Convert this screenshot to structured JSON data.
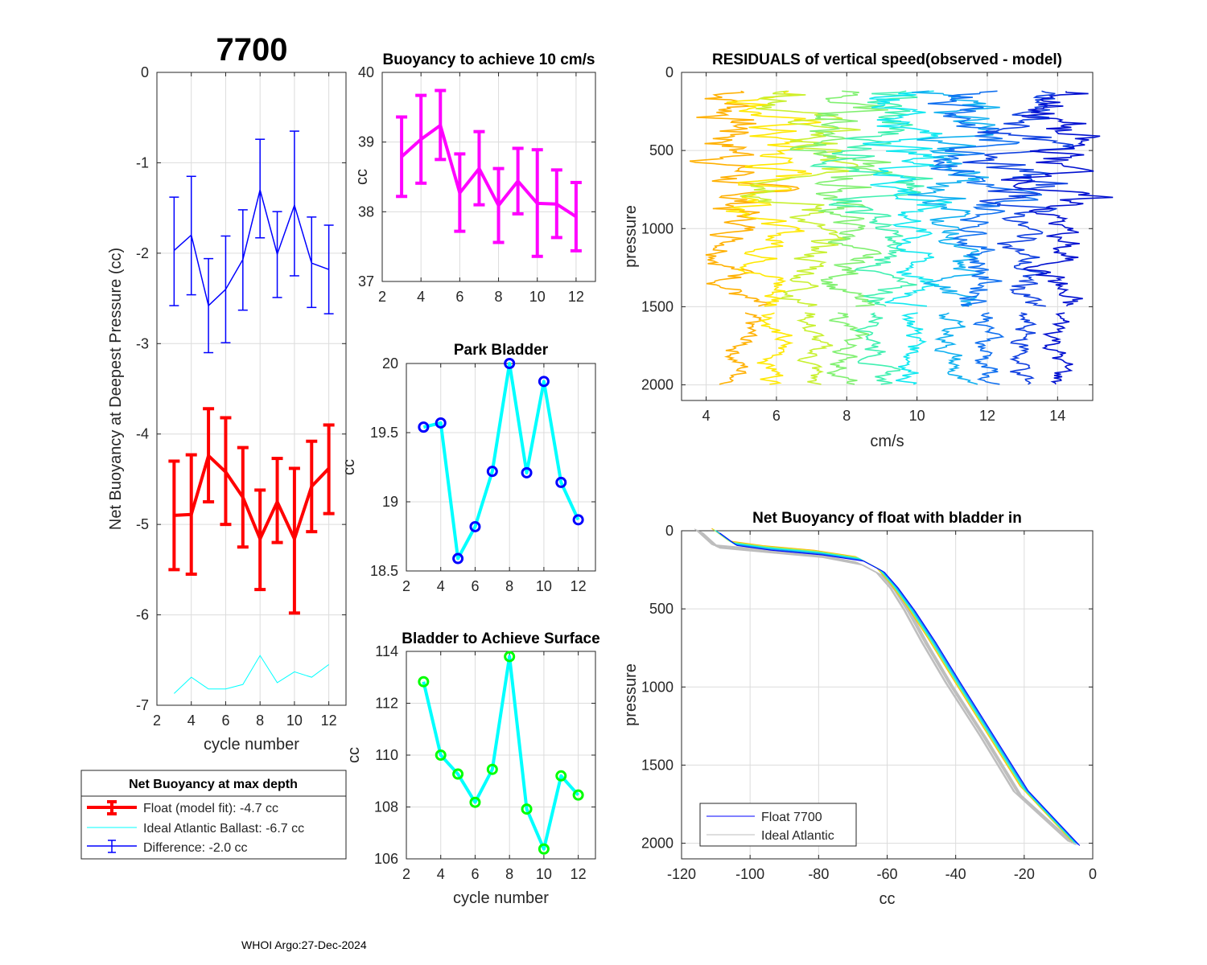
{
  "figure_title": "7700",
  "footer": "WHOI Argo:27-Dec-2024",
  "colors": {
    "float_fit": "#ff0000",
    "ideal_ballast": "#00ffff",
    "difference": "#0000ff",
    "buoyancy_10": "#ff00ff",
    "park_line": "#00ffff",
    "park_marker": "#0000ff",
    "surface_line": "#00ffff",
    "surface_marker": "#00ff00",
    "ideal_gray": "#bdbdbd"
  },
  "chart_data": [
    {
      "id": "net-buoyancy-deepest",
      "type": "line",
      "title": "7700",
      "xlabel": "cycle number",
      "ylabel": "Net Buoyancy at Deepest Pressure (cc)",
      "xlim": [
        2,
        13
      ],
      "ylim": [
        -7,
        0
      ],
      "xticks": [
        2,
        4,
        6,
        8,
        10,
        12
      ],
      "yticks": [
        -7,
        -6,
        -5,
        -4,
        -3,
        -2,
        -1,
        0
      ],
      "grid": true,
      "x": [
        3,
        4,
        5,
        6,
        7,
        8,
        9,
        10,
        11,
        12
      ],
      "series": [
        {
          "name": "Float (model fit)",
          "values": [
            -4.9,
            -4.89,
            -4.24,
            -4.42,
            -4.7,
            -5.16,
            -4.75,
            -5.16,
            -4.58,
            -4.38
          ],
          "err_low": [
            -5.5,
            -5.55,
            -4.75,
            -5.0,
            -5.25,
            -5.72,
            -5.2,
            -5.98,
            -5.08,
            -4.88
          ],
          "err_high": [
            -4.3,
            -4.23,
            -3.72,
            -3.82,
            -4.15,
            -4.62,
            -4.27,
            -4.38,
            -4.08,
            -3.9
          ],
          "style": "thick-errorbar"
        },
        {
          "name": "Ideal Atlantic Ballast",
          "values": [
            -6.87,
            -6.69,
            -6.82,
            -6.82,
            -6.77,
            -6.45,
            -6.75,
            -6.63,
            -6.69,
            -6.55
          ],
          "style": "thin-line"
        },
        {
          "name": "Difference",
          "values": [
            -1.97,
            -1.8,
            -2.58,
            -2.4,
            -2.07,
            -1.3,
            -2.01,
            -1.47,
            -2.11,
            -2.18
          ],
          "err_low": [
            -2.58,
            -2.46,
            -3.1,
            -2.99,
            -2.63,
            -1.83,
            -2.49,
            -2.25,
            -2.6,
            -2.67
          ],
          "err_high": [
            -1.38,
            -1.15,
            -2.06,
            -1.81,
            -1.52,
            -0.74,
            -1.54,
            -0.65,
            -1.6,
            -1.69
          ],
          "style": "thin-errorbar"
        }
      ],
      "legend": {
        "title": "Net Buoyancy at max depth",
        "entries": [
          "Float (model fit):  -4.7 cc",
          "Ideal Atlantic Ballast:  -6.7 cc",
          "Difference:  -2.0 cc"
        ],
        "placement": "below-plot"
      }
    },
    {
      "id": "buoyancy-10cms",
      "type": "line",
      "title": "Buoyancy to achieve 10 cm/s",
      "xlabel": "",
      "ylabel": "cc",
      "xlim": [
        2,
        13
      ],
      "ylim": [
        37,
        40
      ],
      "xticks": [
        2,
        4,
        6,
        8,
        10,
        12
      ],
      "yticks": [
        37,
        38,
        39,
        40
      ],
      "grid": true,
      "x": [
        3,
        4,
        5,
        6,
        7,
        8,
        9,
        10,
        11,
        12
      ],
      "values": [
        38.79,
        39.04,
        39.24,
        38.27,
        38.62,
        38.09,
        38.44,
        38.12,
        38.11,
        37.93
      ],
      "err_low": [
        38.22,
        38.41,
        38.75,
        37.72,
        38.1,
        37.56,
        37.97,
        37.36,
        37.63,
        37.44
      ],
      "err_high": [
        39.36,
        39.67,
        39.74,
        38.83,
        39.15,
        38.62,
        38.91,
        38.89,
        38.6,
        38.42
      ]
    },
    {
      "id": "park-bladder",
      "type": "line",
      "title": "Park Bladder",
      "xlabel": "",
      "ylabel": "cc",
      "xlim": [
        2,
        13
      ],
      "ylim": [
        18.5,
        20
      ],
      "xticks": [
        2,
        4,
        6,
        8,
        10,
        12
      ],
      "yticks": [
        18.5,
        19,
        19.5,
        20
      ],
      "grid": true,
      "x": [
        3,
        4,
        5,
        6,
        7,
        8,
        9,
        10,
        11,
        12
      ],
      "values": [
        19.54,
        19.57,
        18.59,
        18.82,
        19.22,
        20.0,
        19.21,
        19.87,
        19.14,
        18.87
      ]
    },
    {
      "id": "bladder-surface",
      "type": "line",
      "title": "Bladder to Achieve Surface",
      "xlabel": "cycle number",
      "ylabel": "cc",
      "xlim": [
        2,
        13
      ],
      "ylim": [
        106,
        114
      ],
      "xticks": [
        2,
        4,
        6,
        8,
        10,
        12
      ],
      "yticks": [
        106,
        108,
        110,
        112,
        114
      ],
      "grid": true,
      "x": [
        3,
        4,
        5,
        6,
        7,
        8,
        9,
        10,
        11,
        12
      ],
      "values": [
        112.83,
        110.0,
        109.27,
        108.18,
        109.45,
        113.8,
        107.92,
        106.38,
        109.2,
        108.46
      ]
    },
    {
      "id": "residuals",
      "type": "line",
      "title": "RESIDUALS of vertical speed(observed - model)",
      "xlabel": "cm/s",
      "ylabel": "pressure",
      "xlim": [
        3.3,
        15
      ],
      "ylim": [
        0,
        2100
      ],
      "y_reversed": true,
      "xticks": [
        4,
        6,
        8,
        10,
        12,
        14
      ],
      "yticks": [
        0,
        500,
        1000,
        1500,
        2000
      ],
      "grid": true,
      "profile_note": "one offset residual profile per cycle, 100-2000 dbar",
      "profiles": [
        {
          "cycle": 3,
          "center": 5.0,
          "color": "#ffb000"
        },
        {
          "cycle": 4,
          "center": 6.0,
          "color": "#ffe800"
        },
        {
          "cycle": 5,
          "center": 7.0,
          "color": "#c8f030"
        },
        {
          "cycle": 6,
          "center": 8.0,
          "color": "#80f070"
        },
        {
          "cycle": 7,
          "center": 9.0,
          "color": "#40f0b0"
        },
        {
          "cycle": 8,
          "center": 10.0,
          "color": "#10e8f0"
        },
        {
          "cycle": 9,
          "center": 11.0,
          "color": "#10b0f0"
        },
        {
          "cycle": 10,
          "center": 12.0,
          "color": "#1070f0"
        },
        {
          "cycle": 11,
          "center": 13.0,
          "color": "#1040e0"
        },
        {
          "cycle": 12,
          "center": 14.0,
          "color": "#0010d0"
        }
      ]
    },
    {
      "id": "net-buoyancy-bladder-in",
      "type": "line",
      "title": "Net Buoyancy of float with bladder in",
      "xlabel": "cc",
      "ylabel": "pressure",
      "xlim": [
        -120,
        0
      ],
      "ylim": [
        0,
        2100
      ],
      "y_reversed": true,
      "xticks": [
        -120,
        -100,
        -80,
        -60,
        -40,
        -20,
        0
      ],
      "yticks": [
        0,
        500,
        1000,
        1500,
        2000
      ],
      "grid": true,
      "series": [
        {
          "name": "Float 7700",
          "color": "#0000ff",
          "points": [
            [
              -110,
              0
            ],
            [
              -105,
              80
            ],
            [
              -95,
              110
            ],
            [
              -80,
              140
            ],
            [
              -68,
              180
            ],
            [
              -62,
              250
            ],
            [
              -58,
              350
            ],
            [
              -53,
              500
            ],
            [
              -47,
              700
            ],
            [
              -40,
              950
            ],
            [
              -30,
              1300
            ],
            [
              -20,
              1650
            ],
            [
              -5,
              2000
            ]
          ]
        },
        {
          "name": "Ideal Atlantic",
          "color": "#bdbdbd",
          "points": [
            [
              -115,
              0
            ],
            [
              -110,
              100
            ],
            [
              -95,
              130
            ],
            [
              -80,
              160
            ],
            [
              -68,
              210
            ],
            [
              -62,
              280
            ],
            [
              -58,
              380
            ],
            [
              -54,
              520
            ],
            [
              -49,
              720
            ],
            [
              -42,
              980
            ],
            [
              -32,
              1320
            ],
            [
              -22,
              1680
            ],
            [
              -6,
              2000
            ]
          ]
        }
      ],
      "legend": {
        "entries": [
          "Float 7700",
          "Ideal Atlantic"
        ],
        "placement": "bottom-left"
      }
    }
  ]
}
